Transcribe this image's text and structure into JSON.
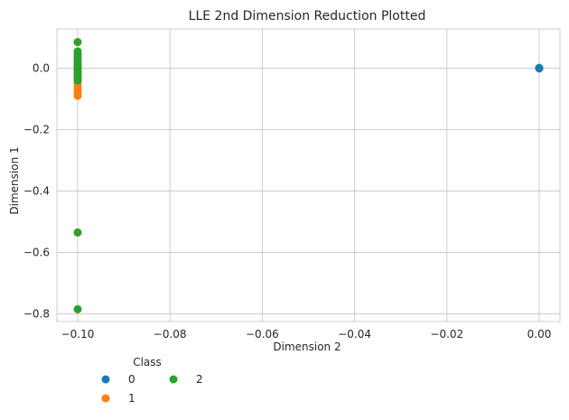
{
  "chart_data": {
    "type": "scatter",
    "title": "LLE 2nd Dimension Reduction Plotted",
    "xlabel": "Dimension 2",
    "ylabel": "Dimension 1",
    "xlim": [
      -0.1045,
      0.0045
    ],
    "ylim": [
      -0.825,
      0.128
    ],
    "xticks": [
      {
        "value": -0.1,
        "label": "−0.10"
      },
      {
        "value": -0.08,
        "label": "−0.08"
      },
      {
        "value": -0.06,
        "label": "−0.06"
      },
      {
        "value": -0.04,
        "label": "−0.04"
      },
      {
        "value": -0.02,
        "label": "−0.02"
      },
      {
        "value": 0.0,
        "label": "0.00"
      }
    ],
    "yticks": [
      {
        "value": 0.0,
        "label": "0.0"
      },
      {
        "value": -0.2,
        "label": "−0.2"
      },
      {
        "value": -0.4,
        "label": "−0.4"
      },
      {
        "value": -0.6,
        "label": "−0.6"
      },
      {
        "value": -0.8,
        "label": "−0.8"
      }
    ],
    "grid": true,
    "legend": {
      "title": "Class",
      "placement": "below-left",
      "columns": 2
    },
    "series": [
      {
        "name": "0",
        "color": "#1f77b4",
        "points": [
          [
            0.0,
            0.0
          ],
          [
            0.0,
            0.001
          ],
          [
            0.0,
            -0.001
          ]
        ]
      },
      {
        "name": "1",
        "color": "#ff7f0e",
        "points": [
          [
            -0.1,
            -0.09
          ],
          [
            -0.1,
            -0.08
          ],
          [
            -0.1,
            -0.07
          ],
          [
            -0.1,
            -0.06
          ],
          [
            -0.1,
            -0.05
          ],
          [
            -0.1,
            -0.04
          ],
          [
            -0.1,
            -0.03
          ],
          [
            -0.1,
            -0.02
          ],
          [
            -0.1,
            -0.01
          ],
          [
            -0.1,
            0.0
          ],
          [
            -0.1,
            0.01
          ]
        ]
      },
      {
        "name": "2",
        "color": "#2ca02c",
        "points": [
          [
            -0.1,
            0.085
          ],
          [
            -0.1,
            0.055
          ],
          [
            -0.1,
            0.045
          ],
          [
            -0.1,
            0.035
          ],
          [
            -0.1,
            0.028
          ],
          [
            -0.1,
            0.02
          ],
          [
            -0.1,
            0.012
          ],
          [
            -0.1,
            0.005
          ],
          [
            -0.1,
            -0.002
          ],
          [
            -0.1,
            -0.01
          ],
          [
            -0.1,
            -0.018
          ],
          [
            -0.1,
            -0.025
          ],
          [
            -0.1,
            -0.032
          ],
          [
            -0.1,
            -0.04
          ],
          [
            -0.1,
            -0.535
          ],
          [
            -0.1,
            -0.785
          ]
        ]
      }
    ]
  }
}
